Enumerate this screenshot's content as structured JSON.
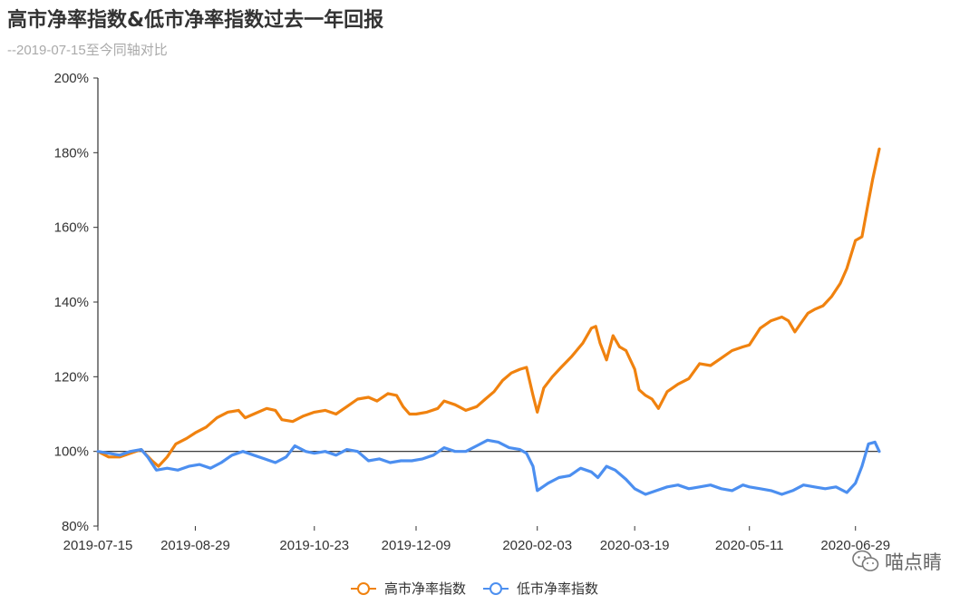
{
  "title": "高市净率指数&低市净率指数过去一年回报",
  "subtitle": "--2019-07-15至今同轴对比",
  "watermark": {
    "text": "喵点睛",
    "icon": "wechat-icon"
  },
  "colors": {
    "high": "#f0820f",
    "low": "#4c8ff0",
    "axis": "#333333",
    "baseline": "#222222"
  },
  "chart_data": {
    "type": "line",
    "title": "高市净率指数&低市净率指数过去一年回报",
    "subtitle": "--2019-07-15至今同轴对比",
    "x_ticks": [
      "2019-07-15",
      "2019-08-29",
      "2019-10-23",
      "2019-12-09",
      "2020-02-03",
      "2020-03-19",
      "2020-05-11",
      "2020-06-29"
    ],
    "y_ticks": [
      "80%",
      "100%",
      "120%",
      "140%",
      "160%",
      "180%",
      "200%"
    ],
    "ylim": [
      80,
      200
    ],
    "xlim": [
      "2019-07-15",
      "2020-07-10"
    ],
    "baseline": 100,
    "grid": false,
    "legend_position": "bottom-center",
    "series": [
      {
        "name": "高市净率指数",
        "color": "#f0820f",
        "points": [
          [
            "2019-07-15",
            100
          ],
          [
            "2019-07-20",
            98.5
          ],
          [
            "2019-07-25",
            98.5
          ],
          [
            "2019-07-30",
            99.5
          ],
          [
            "2019-08-04",
            100.5
          ],
          [
            "2019-08-09",
            97.5
          ],
          [
            "2019-08-12",
            96
          ],
          [
            "2019-08-16",
            98.5
          ],
          [
            "2019-08-20",
            102
          ],
          [
            "2019-08-25",
            103.5
          ],
          [
            "2019-08-29",
            105
          ],
          [
            "2019-09-03",
            106.5
          ],
          [
            "2019-09-08",
            109
          ],
          [
            "2019-09-13",
            110.5
          ],
          [
            "2019-09-18",
            111
          ],
          [
            "2019-09-21",
            109
          ],
          [
            "2019-09-25",
            110
          ],
          [
            "2019-10-01",
            111.5
          ],
          [
            "2019-10-05",
            111
          ],
          [
            "2019-10-08",
            108.5
          ],
          [
            "2019-10-13",
            108
          ],
          [
            "2019-10-18",
            109.5
          ],
          [
            "2019-10-23",
            110.5
          ],
          [
            "2019-10-28",
            111
          ],
          [
            "2019-11-02",
            110
          ],
          [
            "2019-11-07",
            112
          ],
          [
            "2019-11-12",
            114
          ],
          [
            "2019-11-17",
            114.5
          ],
          [
            "2019-11-21",
            113.5
          ],
          [
            "2019-11-26",
            115.5
          ],
          [
            "2019-11-30",
            115
          ],
          [
            "2019-12-03",
            112
          ],
          [
            "2019-12-06",
            110
          ],
          [
            "2019-12-09",
            110
          ],
          [
            "2019-12-14",
            110.5
          ],
          [
            "2019-12-19",
            111.5
          ],
          [
            "2019-12-22",
            113.5
          ],
          [
            "2019-12-27",
            112.5
          ],
          [
            "2020-01-01",
            111
          ],
          [
            "2020-01-06",
            112
          ],
          [
            "2020-01-10",
            114
          ],
          [
            "2020-01-14",
            116
          ],
          [
            "2020-01-18",
            119
          ],
          [
            "2020-01-22",
            121
          ],
          [
            "2020-01-26",
            122
          ],
          [
            "2020-01-29",
            122.5
          ],
          [
            "2020-02-01",
            115
          ],
          [
            "2020-02-03",
            110.5
          ],
          [
            "2020-02-06",
            117
          ],
          [
            "2020-02-10",
            120
          ],
          [
            "2020-02-14",
            122.5
          ],
          [
            "2020-02-19",
            125.5
          ],
          [
            "2020-02-24",
            129
          ],
          [
            "2020-02-28",
            133
          ],
          [
            "2020-03-01",
            133.5
          ],
          [
            "2020-03-03",
            129
          ],
          [
            "2020-03-06",
            124.5
          ],
          [
            "2020-03-09",
            131
          ],
          [
            "2020-03-12",
            128
          ],
          [
            "2020-03-15",
            127
          ],
          [
            "2020-03-19",
            122
          ],
          [
            "2020-03-21",
            116.5
          ],
          [
            "2020-03-24",
            115
          ],
          [
            "2020-03-27",
            114
          ],
          [
            "2020-03-30",
            111.5
          ],
          [
            "2020-04-03",
            116
          ],
          [
            "2020-04-08",
            118
          ],
          [
            "2020-04-13",
            119.5
          ],
          [
            "2020-04-18",
            123.5
          ],
          [
            "2020-04-23",
            123
          ],
          [
            "2020-04-28",
            125
          ],
          [
            "2020-05-03",
            127
          ],
          [
            "2020-05-08",
            128
          ],
          [
            "2020-05-11",
            128.5
          ],
          [
            "2020-05-16",
            133
          ],
          [
            "2020-05-21",
            135
          ],
          [
            "2020-05-26",
            136
          ],
          [
            "2020-05-29",
            135
          ],
          [
            "2020-06-01",
            132
          ],
          [
            "2020-06-04",
            134.5
          ],
          [
            "2020-06-07",
            137
          ],
          [
            "2020-06-10",
            138
          ],
          [
            "2020-06-14",
            139
          ],
          [
            "2020-06-18",
            141.5
          ],
          [
            "2020-06-22",
            145
          ],
          [
            "2020-06-25",
            149
          ],
          [
            "2020-06-29",
            156.5
          ],
          [
            "2020-07-02",
            157.5
          ],
          [
            "2020-07-05",
            167
          ],
          [
            "2020-07-07",
            173
          ],
          [
            "2020-07-10",
            181
          ]
        ]
      },
      {
        "name": "低市净率指数",
        "color": "#4c8ff0",
        "points": [
          [
            "2019-07-15",
            100
          ],
          [
            "2019-07-20",
            99.5
          ],
          [
            "2019-07-25",
            99
          ],
          [
            "2019-07-30",
            100
          ],
          [
            "2019-08-04",
            100.5
          ],
          [
            "2019-08-07",
            98.5
          ],
          [
            "2019-08-11",
            95
          ],
          [
            "2019-08-16",
            95.5
          ],
          [
            "2019-08-21",
            95
          ],
          [
            "2019-08-26",
            96
          ],
          [
            "2019-08-31",
            96.5
          ],
          [
            "2019-09-05",
            95.5
          ],
          [
            "2019-09-10",
            97
          ],
          [
            "2019-09-15",
            99
          ],
          [
            "2019-09-20",
            100
          ],
          [
            "2019-09-25",
            99
          ],
          [
            "2019-09-30",
            98
          ],
          [
            "2019-10-05",
            97
          ],
          [
            "2019-10-10",
            98.5
          ],
          [
            "2019-10-14",
            101.5
          ],
          [
            "2019-10-19",
            100
          ],
          [
            "2019-10-23",
            99.5
          ],
          [
            "2019-10-28",
            100
          ],
          [
            "2019-11-02",
            99
          ],
          [
            "2019-11-07",
            100.5
          ],
          [
            "2019-11-12",
            100
          ],
          [
            "2019-11-17",
            97.5
          ],
          [
            "2019-11-22",
            98
          ],
          [
            "2019-11-27",
            97
          ],
          [
            "2019-12-02",
            97.5
          ],
          [
            "2019-12-07",
            97.5
          ],
          [
            "2019-12-12",
            98
          ],
          [
            "2019-12-17",
            99
          ],
          [
            "2019-12-22",
            101
          ],
          [
            "2019-12-27",
            100
          ],
          [
            "2020-01-01",
            100
          ],
          [
            "2020-01-06",
            101.5
          ],
          [
            "2020-01-11",
            103
          ],
          [
            "2020-01-16",
            102.5
          ],
          [
            "2020-01-21",
            101
          ],
          [
            "2020-01-26",
            100.5
          ],
          [
            "2020-01-29",
            99.5
          ],
          [
            "2020-02-01",
            96
          ],
          [
            "2020-02-03",
            89.5
          ],
          [
            "2020-02-08",
            91.5
          ],
          [
            "2020-02-13",
            93
          ],
          [
            "2020-02-18",
            93.5
          ],
          [
            "2020-02-23",
            95.5
          ],
          [
            "2020-02-28",
            94.5
          ],
          [
            "2020-03-02",
            93
          ],
          [
            "2020-03-06",
            96
          ],
          [
            "2020-03-10",
            95
          ],
          [
            "2020-03-15",
            92.5
          ],
          [
            "2020-03-19",
            90
          ],
          [
            "2020-03-24",
            88.5
          ],
          [
            "2020-03-29",
            89.5
          ],
          [
            "2020-04-03",
            90.5
          ],
          [
            "2020-04-08",
            91
          ],
          [
            "2020-04-13",
            90
          ],
          [
            "2020-04-18",
            90.5
          ],
          [
            "2020-04-23",
            91
          ],
          [
            "2020-04-28",
            90
          ],
          [
            "2020-05-03",
            89.5
          ],
          [
            "2020-05-08",
            91
          ],
          [
            "2020-05-11",
            90.5
          ],
          [
            "2020-05-16",
            90
          ],
          [
            "2020-05-21",
            89.5
          ],
          [
            "2020-05-26",
            88.5
          ],
          [
            "2020-05-31",
            89.5
          ],
          [
            "2020-06-05",
            91
          ],
          [
            "2020-06-10",
            90.5
          ],
          [
            "2020-06-15",
            90
          ],
          [
            "2020-06-20",
            90.5
          ],
          [
            "2020-06-25",
            89
          ],
          [
            "2020-06-29",
            91.5
          ],
          [
            "2020-07-02",
            96
          ],
          [
            "2020-07-05",
            102
          ],
          [
            "2020-07-08",
            102.5
          ],
          [
            "2020-07-10",
            100
          ]
        ]
      }
    ]
  }
}
